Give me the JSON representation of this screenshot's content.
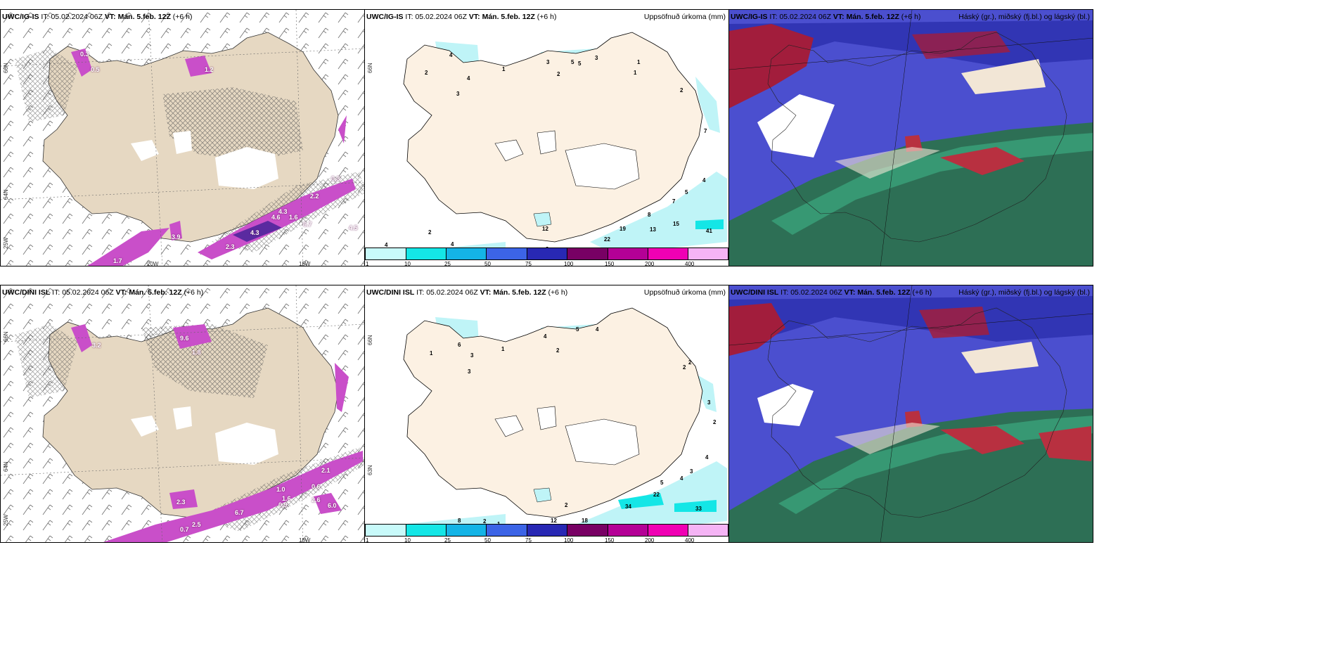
{
  "panels": {
    "top_left": {
      "model": "UWC/IG-IS",
      "it": "05.02.2024 06Z",
      "vt_label": "VT:",
      "vt": "Mán. 5.feb. 12Z",
      "lead": "(+6 h)"
    },
    "top_mid": {
      "model": "UWC/IG-IS",
      "it": "05.02.2024 06Z",
      "vt_label": "VT:",
      "vt": "Mán. 5.feb. 12Z",
      "lead": "(+6 h)",
      "title": "Uppsöfnuð úrkoma (mm)"
    },
    "top_right": {
      "model": "UWC/IG-IS",
      "it": "05.02.2024 06Z",
      "vt_label": "VT:",
      "vt": "Mán. 5.feb. 12Z",
      "lead": "(+6 h)",
      "title": "Háský (gr.), miðský (fj.bl.) og lágský (bl.)"
    },
    "bot_left": {
      "model": "UWC/DINI ISL",
      "it": "05.02.2024 06Z",
      "vt_label": "VT:",
      "vt": "Mán. 5.feb. 12Z",
      "lead": "(+6 h)"
    },
    "bot_mid": {
      "model": "UWC/DINI ISL",
      "it": "05.02.2024 06Z",
      "vt_label": "VT:",
      "vt": "Mán. 5.feb. 12Z",
      "lead": "(+6 h)",
      "title": "Uppsöfnuð úrkoma (mm)"
    },
    "bot_right": {
      "model": "UWC/DINI ISL",
      "it": "05.02.2024 06Z",
      "vt_label": "VT:",
      "vt": "Mán. 5.feb. 12Z",
      "lead": "(+6 h)",
      "title": "Háský (gr.), miðský (fj.bl.) og lágský (bl.)"
    }
  },
  "it_label": "IT:",
  "axis_labels": {
    "lat66": "66N",
    "lat64": "64N",
    "lat63": "63N",
    "lon25": "25W",
    "lon15": "15W",
    "lon20": "20W"
  },
  "colorbar": {
    "ticks": [
      "1",
      "10",
      "25",
      "50",
      "75",
      "100",
      "150",
      "200",
      "400"
    ],
    "colors": [
      "#c8fafa",
      "#14e6e6",
      "#14b4e6",
      "#3c64e6",
      "#2828b4",
      "#780064",
      "#b40096",
      "#f000b4",
      "#f5b4f5"
    ]
  },
  "precip_labels_top": [
    "2",
    "4",
    "4",
    "3",
    "1",
    "3",
    "2",
    "5",
    "5",
    "3",
    "1",
    "1",
    "2",
    "7",
    "4",
    "5",
    "7",
    "8",
    "19",
    "13",
    "15",
    "41",
    "22",
    "12",
    "9",
    "2",
    "4",
    "4"
  ],
  "precip_labels_bot": [
    "1",
    "3",
    "6",
    "3",
    "1",
    "4",
    "2",
    "5",
    "4",
    "2",
    "2",
    "3",
    "2",
    "4",
    "3",
    "4",
    "5",
    "22",
    "34",
    "33",
    "18",
    "12",
    "2",
    "8",
    "2",
    "1"
  ],
  "snow_labels_top": [
    "0.3",
    "0.5",
    "1.2",
    "4.3",
    "0.3",
    "6.7",
    "2.2",
    "4.5",
    "4.6",
    "1.6",
    "3.9",
    "4.3",
    "1.7",
    "2.3"
  ],
  "snow_labels_bot": [
    "2.3",
    "9.6",
    "0.9",
    "1.8",
    "3.2",
    "6.0",
    "2.6",
    "6.7",
    "2.1",
    "1.0",
    "0.6",
    "1.6",
    "2.5",
    "0.7"
  ],
  "colors": {
    "land": "#f5ebdd",
    "land_left": "#e6d8c2",
    "precip_light": "#bff4f7",
    "snow": "#c94fc9",
    "cloud_high": "#3b3fbf",
    "cloud_mid": "#2d6f55",
    "cloud_low": "#9b1d2b"
  }
}
